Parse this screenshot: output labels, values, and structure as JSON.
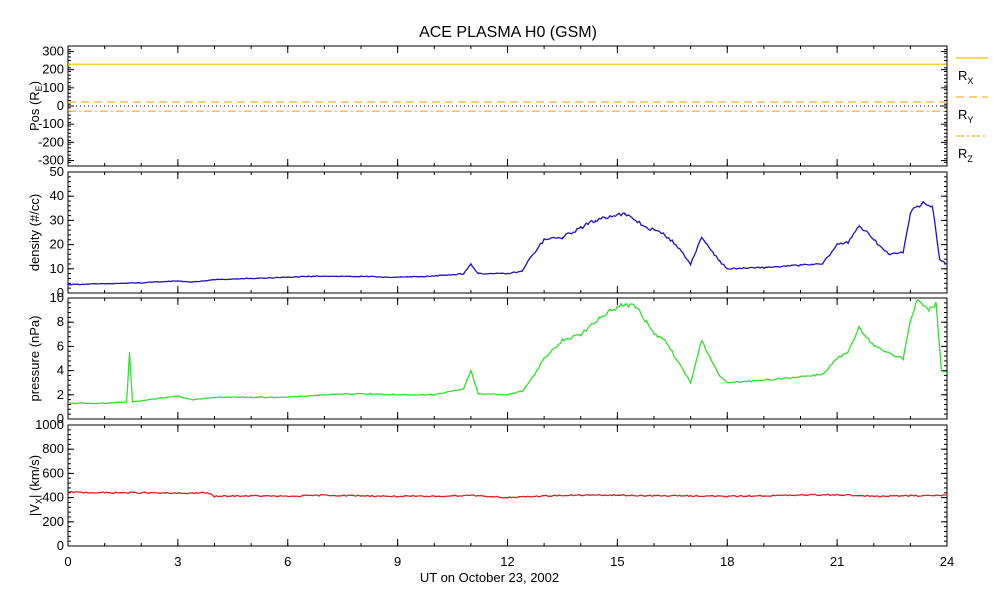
{
  "chart_data": [
    {
      "type": "line",
      "panel": "position",
      "title": "ACE PLASMA H0 (GSM)",
      "ylabel_main": "Pos (R",
      "ylabel_sub": "E",
      "ylabel_end": ")",
      "ylim": [
        -330,
        330
      ],
      "yticks": [
        300,
        200,
        100,
        0,
        -100,
        -200,
        -300
      ],
      "grid": false,
      "legend": "right",
      "series": [
        {
          "name": "R",
          "sub": "X",
          "style": "solid",
          "color": "#f0c000",
          "x": [
            0,
            24
          ],
          "values": [
            230,
            230
          ]
        },
        {
          "name": "R",
          "sub": "Y",
          "style": "dash",
          "color": "#f0b030",
          "x": [
            0,
            24
          ],
          "values": [
            22,
            22
          ]
        },
        {
          "name": "R",
          "sub": "Z",
          "style": "dashdot",
          "color": "#f0b030",
          "x": [
            0,
            24
          ],
          "values": [
            -28,
            -28
          ]
        }
      ],
      "reference": {
        "value": 0,
        "style": "dotted",
        "color": "#000000"
      }
    },
    {
      "type": "line",
      "panel": "density",
      "ylabel": "density (#/cc)",
      "ylim": [
        0,
        50
      ],
      "yticks": [
        50,
        40,
        30,
        20,
        10,
        0
      ],
      "series": [
        {
          "name": "",
          "color": "#2010c0",
          "x": [
            0,
            1,
            2,
            3,
            3.4,
            4,
            5,
            6,
            7,
            8,
            9,
            10,
            10.8,
            11,
            11.2,
            12,
            12.4,
            12.6,
            12.8,
            13,
            13.5,
            14,
            14.4,
            14.8,
            15.2,
            15.5,
            15.8,
            16,
            16.3,
            16.6,
            17,
            17.3,
            17.8,
            18,
            19,
            20,
            20.6,
            21,
            21.3,
            21.6,
            22,
            22.4,
            22.8,
            23,
            23.3,
            23.6,
            23.8,
            24
          ],
          "values": [
            3.5,
            3.8,
            4.2,
            5,
            4.5,
            5.5,
            6,
            6.5,
            7,
            6.8,
            6.5,
            7,
            8,
            12,
            8,
            8,
            9,
            14,
            18,
            22,
            23,
            27,
            30,
            32,
            32.5,
            30,
            27,
            26,
            24,
            20,
            12,
            23,
            13,
            10,
            10.5,
            11.5,
            12,
            20,
            21,
            28,
            22,
            16,
            17,
            33,
            37,
            36,
            14,
            12
          ]
        }
      ]
    },
    {
      "type": "line",
      "panel": "pressure",
      "ylabel": "pressure (nPa)",
      "ylim": [
        0,
        10
      ],
      "yticks": [
        10,
        8,
        6,
        4,
        2,
        0
      ],
      "series": [
        {
          "name": "",
          "color": "#30e030",
          "x": [
            0,
            1,
            1.6,
            1.68,
            1.76,
            2,
            3,
            3.4,
            4,
            5,
            6,
            7,
            8,
            9,
            10,
            10.8,
            11,
            11.2,
            12,
            12.4,
            12.7,
            13,
            13.5,
            14,
            14.4,
            14.8,
            15.2,
            15.5,
            15.8,
            16,
            16.3,
            16.6,
            17,
            17.3,
            17.8,
            18,
            19,
            20,
            20.6,
            21,
            21.3,
            21.6,
            22,
            22.4,
            22.8,
            23,
            23.2,
            23.5,
            23.7,
            23.85,
            24
          ],
          "values": [
            1.3,
            1.3,
            1.4,
            5.5,
            1.4,
            1.5,
            1.9,
            1.6,
            1.8,
            1.8,
            1.8,
            2.0,
            2.1,
            2.0,
            2.0,
            2.5,
            4.0,
            2.1,
            2.0,
            2.3,
            3.5,
            5,
            6.5,
            7,
            8,
            9,
            9.5,
            9.3,
            8,
            7,
            6.5,
            5,
            3,
            6.5,
            3.5,
            3.0,
            3.2,
            3.5,
            3.7,
            5,
            5.5,
            7.5,
            6,
            5.5,
            5,
            8,
            10,
            9,
            9.5,
            4,
            3.8
          ]
        }
      ]
    },
    {
      "type": "line",
      "panel": "velocity",
      "ylabel_pre": "|V",
      "ylabel_sub": "X",
      "ylabel_post": "| (km/s)",
      "xlabel": "UT on October 23, 2002",
      "xlim": [
        0,
        24
      ],
      "xticks": [
        "0",
        "3",
        "6",
        "9",
        "12",
        "15",
        "18",
        "21",
        "24"
      ],
      "ylim": [
        0,
        1000
      ],
      "yticks": [
        1000,
        800,
        600,
        400,
        200,
        0
      ],
      "series": [
        {
          "name": "",
          "color": "#e02020",
          "x": [
            0,
            1,
            2,
            3,
            3.8,
            4,
            5,
            6,
            7,
            8,
            9,
            10,
            11,
            12,
            12.5,
            13,
            14,
            15,
            16,
            17,
            18,
            19,
            20,
            21,
            22,
            23,
            24
          ],
          "values": [
            445,
            440,
            440,
            435,
            440,
            410,
            415,
            410,
            420,
            415,
            410,
            410,
            420,
            400,
            405,
            415,
            420,
            420,
            415,
            415,
            410,
            415,
            420,
            425,
            410,
            415,
            420
          ]
        }
      ]
    }
  ]
}
